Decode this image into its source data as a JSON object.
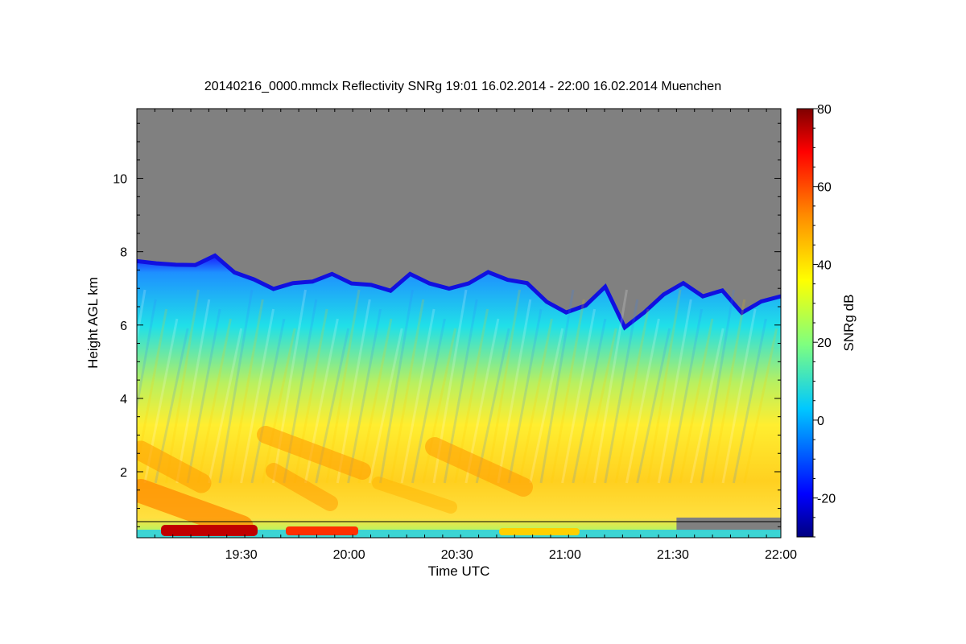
{
  "chart_data": {
    "type": "heatmap",
    "title": "20140216_0000.mmclx Reflectivity SNRg   19:01 16.02.2014 - 22:00 16.02.2014 Muenchen",
    "xlabel": "Time UTC",
    "ylabel": "Height AGL km",
    "colorbar_label": "SNRg dB",
    "x_ticks": [
      "19:30",
      "20:00",
      "20:30",
      "21:00",
      "21:30",
      "22:00"
    ],
    "x_tick_minutes": [
      29,
      59,
      89,
      119,
      149,
      179
    ],
    "xlim_minutes": [
      0,
      179
    ],
    "y_ticks": [
      2,
      4,
      6,
      8,
      10
    ],
    "ylim": [
      0.2,
      11.9
    ],
    "colorbar_ticks": [
      -20,
      0,
      20,
      40,
      60,
      80
    ],
    "colorbar_range": [
      -30,
      80
    ],
    "colormap": "jet",
    "nodata_color": "#808080",
    "signal_top_km": [
      7.7,
      7.75,
      7.6,
      7.7,
      7.85,
      7.5,
      7.2,
      7.05,
      7.1,
      7.25,
      7.35,
      7.2,
      7.05,
      7.0,
      7.35,
      7.2,
      6.95,
      7.2,
      7.4,
      7.3,
      7.1,
      6.7,
      6.3,
      6.6,
      7.0,
      6.0,
      6.3,
      6.9,
      7.1,
      6.85,
      6.9,
      6.4,
      6.6,
      6.85
    ],
    "low_gap_start_minutes": 150,
    "low_gap_range_km": [
      0.4,
      0.75
    ],
    "scene_description": ""
  }
}
